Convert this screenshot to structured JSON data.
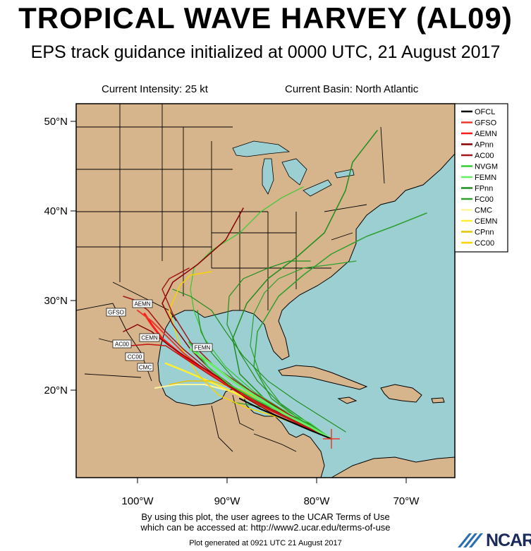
{
  "title": "TROPICAL WAVE HARVEY (AL09)",
  "subtitle": "EPS track guidance initialized at 0000 UTC, 21 August 2017",
  "current_intensity": "Current Intensity: 25 kt",
  "current_basin": "Current Basin: North Atlantic",
  "lat_labels": [
    "50°N",
    "40°N",
    "30°N",
    "20°N"
  ],
  "lon_labels": [
    "100°W",
    "90°W",
    "80°W",
    "70°W"
  ],
  "colors": {
    "ocean": "#9ccfd2",
    "land": "#d6b48c",
    "border": "#000000"
  },
  "legend": [
    {
      "label": "OFCL",
      "color": "#000000"
    },
    {
      "label": "GFSO",
      "color": "#e83a2a"
    },
    {
      "label": "AEMN",
      "color": "#ff1a1a"
    },
    {
      "label": "APnn",
      "color": "#8b0000"
    },
    {
      "label": "AC00",
      "color": "#a01818"
    },
    {
      "label": "NVGM",
      "color": "#33cc33"
    },
    {
      "label": "FEMN",
      "color": "#66ee66"
    },
    {
      "label": "FPnn",
      "color": "#1f8f1f"
    },
    {
      "label": "FC00",
      "color": "#2ea02e"
    },
    {
      "label": "CMC",
      "color": "#fff4a0"
    },
    {
      "label": "CEMN",
      "color": "#ffee33"
    },
    {
      "label": "CPnn",
      "color": "#e6c200"
    },
    {
      "label": "CC00",
      "color": "#f5d400"
    }
  ],
  "track_labels": [
    "AEMN",
    "GFSO",
    "CEMN",
    "AC00",
    "CC00",
    "CMC",
    "FEMN"
  ],
  "footer": {
    "line1": "By using this plot, the user agrees to the UCAR Terms of Use",
    "line2": "which can be accessed at: http://www2.ucar.edu/terms-of-use",
    "generated": "Plot generated at 0921 UTC   21 August 2017"
  },
  "logo": "NCAR"
}
